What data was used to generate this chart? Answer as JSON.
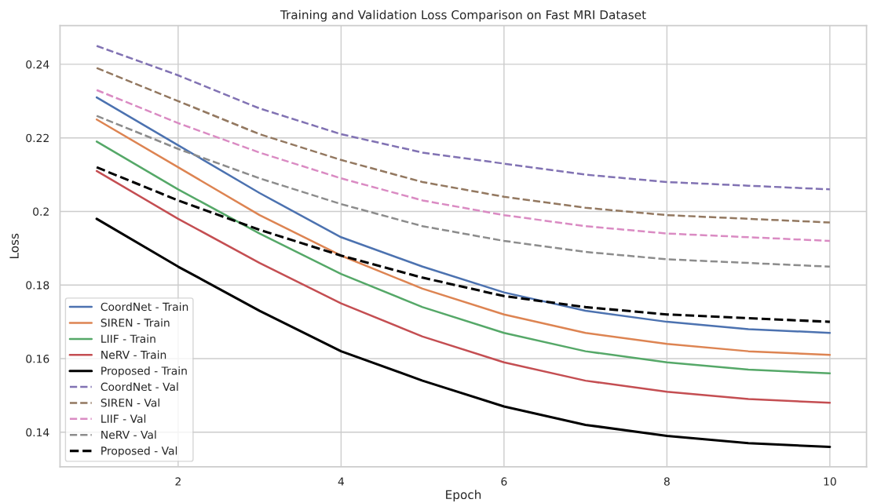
{
  "chart_data": {
    "type": "line",
    "title": "Training and Validation Loss Comparison on Fast MRI Dataset",
    "xlabel": "Epoch",
    "ylabel": "Loss",
    "x": [
      1,
      2,
      3,
      4,
      5,
      6,
      7,
      8,
      9,
      10
    ],
    "xlim": [
      0.55,
      10.45
    ],
    "xticks": [
      2,
      4,
      6,
      8,
      10
    ],
    "ylim": [
      0.1306,
      0.2505
    ],
    "yticks": [
      0.14,
      0.16,
      0.18,
      0.2,
      0.22,
      0.24
    ],
    "grid": true,
    "legend": "bottom left",
    "marker": "none",
    "series": [
      {
        "name": "CoordNet - Train",
        "color": "#4c72b0",
        "line_style": "solid",
        "values": [
          0.231,
          0.218,
          0.205,
          0.193,
          0.185,
          0.178,
          0.173,
          0.17,
          0.168,
          0.167
        ]
      },
      {
        "name": "SIREN - Train",
        "color": "#dd8452",
        "line_style": "solid",
        "values": [
          0.225,
          0.212,
          0.199,
          0.188,
          0.179,
          0.172,
          0.167,
          0.164,
          0.162,
          0.161
        ]
      },
      {
        "name": "LIIF - Train",
        "color": "#55a868",
        "line_style": "solid",
        "values": [
          0.219,
          0.206,
          0.194,
          0.183,
          0.174,
          0.167,
          0.162,
          0.159,
          0.157,
          0.156
        ]
      },
      {
        "name": "NeRV - Train",
        "color": "#c44e52",
        "line_style": "solid",
        "values": [
          0.211,
          0.198,
          0.186,
          0.175,
          0.166,
          0.159,
          0.154,
          0.151,
          0.149,
          0.148
        ]
      },
      {
        "name": "Proposed - Train",
        "color": "#000000",
        "line_style": "solid",
        "values": [
          0.198,
          0.185,
          0.173,
          0.162,
          0.154,
          0.147,
          0.142,
          0.139,
          0.137,
          0.136
        ]
      },
      {
        "name": "CoordNet - Val",
        "color": "#8172b3",
        "line_style": "dashed",
        "values": [
          0.245,
          0.237,
          0.228,
          0.221,
          0.216,
          0.213,
          0.21,
          0.208,
          0.207,
          0.206
        ]
      },
      {
        "name": "SIREN - Val",
        "color": "#937860",
        "line_style": "dashed",
        "values": [
          0.239,
          0.23,
          0.221,
          0.214,
          0.208,
          0.204,
          0.201,
          0.199,
          0.198,
          0.197
        ]
      },
      {
        "name": "LIIF - Val",
        "color": "#da8bc3",
        "line_style": "dashed",
        "values": [
          0.233,
          0.224,
          0.216,
          0.209,
          0.203,
          0.199,
          0.196,
          0.194,
          0.193,
          0.192
        ]
      },
      {
        "name": "NeRV - Val",
        "color": "#8c8c8c",
        "line_style": "dashed",
        "values": [
          0.226,
          0.217,
          0.209,
          0.202,
          0.196,
          0.192,
          0.189,
          0.187,
          0.186,
          0.185
        ]
      },
      {
        "name": "Proposed - Val",
        "color": "#000000",
        "line_style": "dashed",
        "values": [
          0.212,
          0.203,
          0.195,
          0.188,
          0.182,
          0.177,
          0.174,
          0.172,
          0.171,
          0.17
        ]
      }
    ]
  }
}
